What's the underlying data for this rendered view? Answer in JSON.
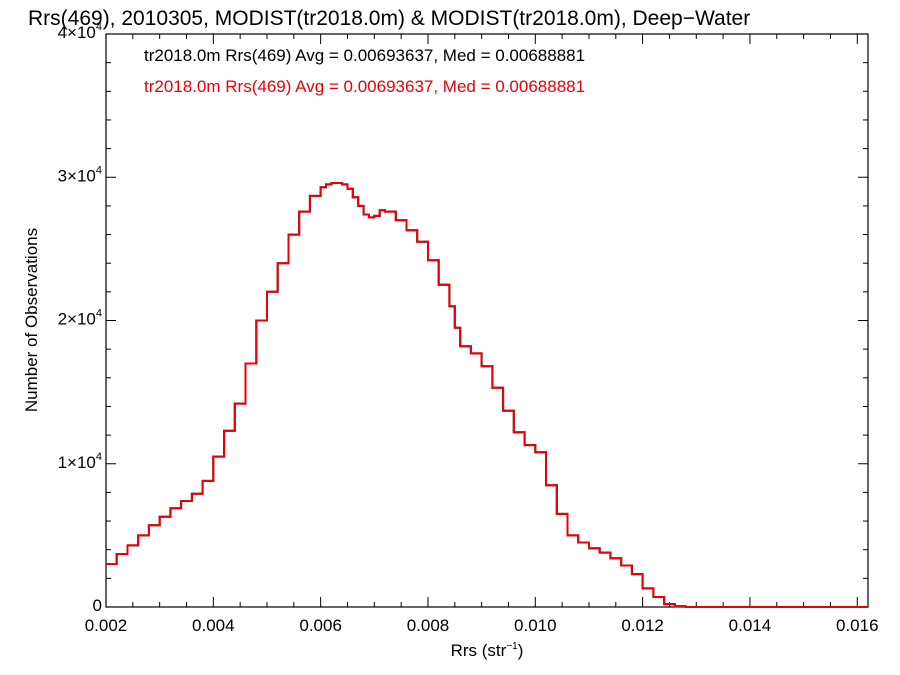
{
  "chart_data": {
    "type": "line",
    "title": "Rrs(469), 2010305, MODIST(tr2018.0m) & MODIST(tr2018.0m), Deep−Water",
    "xlabel_main": "Rrs (str",
    "xlabel_sup": "−1",
    "xlabel_tail": ")",
    "ylabel": "Number of Observations",
    "xlim": [
      0.002,
      0.0162
    ],
    "ylim": [
      0,
      40000
    ],
    "x_ticks": [
      0.002,
      0.004,
      0.006,
      0.008,
      0.01,
      0.012,
      0.014,
      0.016
    ],
    "x_tick_labels": [
      "0.002",
      "0.004",
      "0.006",
      "0.008",
      "0.010",
      "0.012",
      "0.014",
      "0.016"
    ],
    "y_ticks": [
      {
        "value": 0,
        "mantissa": "0",
        "exp": ""
      },
      {
        "value": 10000,
        "mantissa": "1×10",
        "exp": "4"
      },
      {
        "value": 20000,
        "mantissa": "2×10",
        "exp": "4"
      },
      {
        "value": 30000,
        "mantissa": "3×10",
        "exp": "4"
      },
      {
        "value": 40000,
        "mantissa": "4×10",
        "exp": "4"
      }
    ],
    "annotations": [
      {
        "text": "tr2018.0m Rrs(469) Avg = 0.00693637, Med = 0.00688881",
        "color": "#000000"
      },
      {
        "text": "tr2018.0m Rrs(469) Avg = 0.00693637, Med = 0.00688881",
        "color": "#e8000b"
      }
    ],
    "series": [
      {
        "color": "#000000",
        "x": [
          0.002,
          0.0022,
          0.0024,
          0.0026,
          0.0028,
          0.003,
          0.0032,
          0.0034,
          0.0036,
          0.0038,
          0.004,
          0.0042,
          0.0044,
          0.0046,
          0.0048,
          0.005,
          0.0052,
          0.0054,
          0.0056,
          0.0058,
          0.006,
          0.0061,
          0.0062,
          0.0063,
          0.0064,
          0.0065,
          0.0066,
          0.0067,
          0.0068,
          0.0069,
          0.007,
          0.0071,
          0.0072,
          0.0074,
          0.0076,
          0.0078,
          0.008,
          0.0082,
          0.0084,
          0.0085,
          0.0086,
          0.0088,
          0.009,
          0.0092,
          0.0094,
          0.0096,
          0.0098,
          0.01,
          0.0102,
          0.0104,
          0.0106,
          0.0108,
          0.011,
          0.0112,
          0.0114,
          0.0116,
          0.0118,
          0.012,
          0.0122,
          0.0124,
          0.0126,
          0.0128,
          0.013,
          0.0132,
          0.014,
          0.015,
          0.0162
        ],
        "y": [
          3000,
          3700,
          4300,
          5000,
          5700,
          6300,
          6900,
          7400,
          7900,
          8800,
          10500,
          12300,
          14200,
          17000,
          20000,
          22000,
          24000,
          26000,
          27600,
          28700,
          29300,
          29500,
          29600,
          29600,
          29500,
          29200,
          28600,
          28000,
          27400,
          27200,
          27300,
          27700,
          27600,
          27000,
          26300,
          25500,
          24200,
          22500,
          21000,
          19500,
          18200,
          17700,
          16800,
          15300,
          13700,
          12200,
          11300,
          10800,
          8500,
          6500,
          5000,
          4500,
          4100,
          3800,
          3400,
          2900,
          2300,
          1300,
          700,
          200,
          50,
          0,
          0,
          0,
          0,
          0,
          0
        ]
      },
      {
        "color": "#e8000b",
        "x": [
          0.002,
          0.0022,
          0.0024,
          0.0026,
          0.0028,
          0.003,
          0.0032,
          0.0034,
          0.0036,
          0.0038,
          0.004,
          0.0042,
          0.0044,
          0.0046,
          0.0048,
          0.005,
          0.0052,
          0.0054,
          0.0056,
          0.0058,
          0.006,
          0.0061,
          0.0062,
          0.0063,
          0.0064,
          0.0065,
          0.0066,
          0.0067,
          0.0068,
          0.0069,
          0.007,
          0.0071,
          0.0072,
          0.0074,
          0.0076,
          0.0078,
          0.008,
          0.0082,
          0.0084,
          0.0085,
          0.0086,
          0.0088,
          0.009,
          0.0092,
          0.0094,
          0.0096,
          0.0098,
          0.01,
          0.0102,
          0.0104,
          0.0106,
          0.0108,
          0.011,
          0.0112,
          0.0114,
          0.0116,
          0.0118,
          0.012,
          0.0122,
          0.0124,
          0.0126,
          0.0128,
          0.013,
          0.0132,
          0.014,
          0.015,
          0.0162
        ],
        "y": [
          3000,
          3700,
          4300,
          5000,
          5700,
          6300,
          6900,
          7400,
          7900,
          8800,
          10500,
          12300,
          14200,
          17000,
          20000,
          22000,
          24000,
          26000,
          27600,
          28700,
          29300,
          29500,
          29600,
          29600,
          29500,
          29200,
          28600,
          28000,
          27400,
          27200,
          27300,
          27700,
          27600,
          27000,
          26300,
          25500,
          24200,
          22500,
          21000,
          19500,
          18200,
          17700,
          16800,
          15300,
          13700,
          12200,
          11300,
          10800,
          8500,
          6500,
          5000,
          4500,
          4100,
          3800,
          3400,
          2900,
          2300,
          1300,
          700,
          200,
          50,
          0,
          0,
          0,
          0,
          0,
          0
        ]
      }
    ]
  }
}
